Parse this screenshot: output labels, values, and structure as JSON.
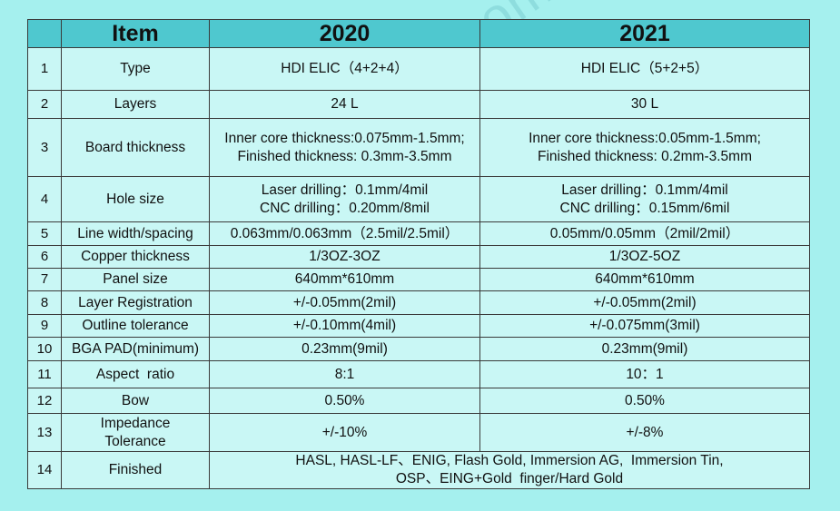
{
  "header": {
    "col_num": "",
    "col_item": "Item",
    "col_2020": "2020",
    "col_2021": "2021"
  },
  "rows": [
    {
      "num": "1",
      "item": "Type",
      "y2020": "HDI ELIC（4+2+4）",
      "y2021": "HDI ELIC（5+2+5）"
    },
    {
      "num": "2",
      "item": "Layers",
      "y2020": "24 L",
      "y2021": "30 L"
    },
    {
      "num": "3",
      "item": "Board thickness",
      "y2020_l1": "Inner core thickness:0.075mm-1.5mm;",
      "y2020_l2": "Finished thickness: 0.3mm-3.5mm",
      "y2021_l1": "Inner core thickness:0.05mm-1.5mm;",
      "y2021_l2": "Finished thickness: 0.2mm-3.5mm"
    },
    {
      "num": "4",
      "item": "Hole size",
      "y2020_l1": "Laser drilling：0.1mm/4mil",
      "y2020_l2": "CNC drilling：0.20mm/8mil",
      "y2021_l1": "Laser drilling：0.1mm/4mil",
      "y2021_l2": "CNC drilling：0.15mm/6mil"
    },
    {
      "num": "5",
      "item": "Line width/spacing",
      "y2020": "0.063mm/0.063mm（2.5mil/2.5mil）",
      "y2021": "0.05mm/0.05mm（2mil/2mil）"
    },
    {
      "num": "6",
      "item": "Copper thickness",
      "y2020": "1/3OZ-3OZ",
      "y2021": "1/3OZ-5OZ"
    },
    {
      "num": "7",
      "item": "Panel size",
      "y2020": "640mm*610mm",
      "y2021": "640mm*610mm"
    },
    {
      "num": "8",
      "item": "Layer Registration",
      "y2020": "+/-0.05mm(2mil)",
      "y2021": "+/-0.05mm(2mil)"
    },
    {
      "num": "9",
      "item": "Outline tolerance",
      "y2020": "+/-0.10mm(4mil)",
      "y2021": "+/-0.075mm(3mil)"
    },
    {
      "num": "10",
      "item": "BGA PAD(minimum)",
      "y2020": "0.23mm(9mil)",
      "y2021": "0.23mm(9mil)"
    },
    {
      "num": "11",
      "item": "Aspect  ratio",
      "y2020": "8:1",
      "y2021": "10：1"
    },
    {
      "num": "12",
      "item": "Bow",
      "y2020": "0.50%",
      "y2021": "0.50%"
    },
    {
      "num": "13",
      "item_l1": "Impedance",
      "item_l2": "Tolerance",
      "y2020": "+/-10%",
      "y2021": "+/-8%"
    },
    {
      "num": "14",
      "item": "Finished",
      "merged_l1": "HASL, HASL-LF、ENIG, Flash Gold, Immersion AG,  Immersion Tin,",
      "merged_l2": "OSP、EING+Gold  finger/Hard Gold"
    }
  ],
  "watermark": "www.bestpcbs.com"
}
